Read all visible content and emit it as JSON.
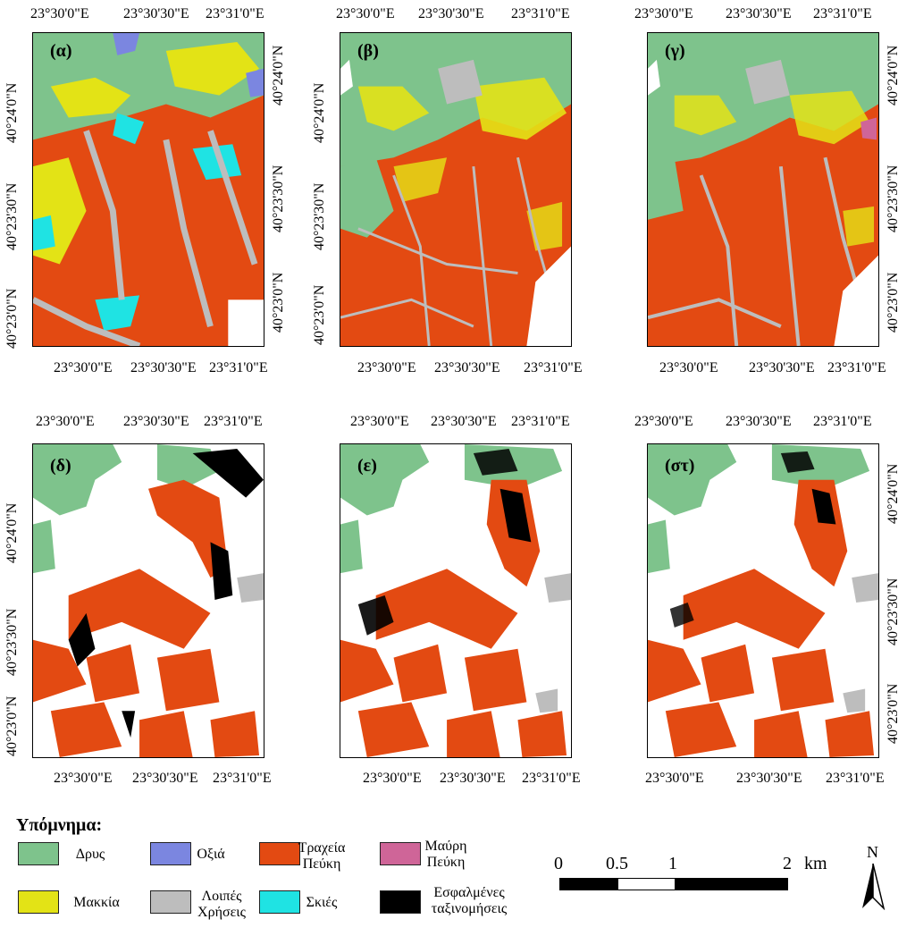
{
  "panels": [
    {
      "label": "(α)"
    },
    {
      "label": "(β)"
    },
    {
      "label": "(γ)"
    },
    {
      "label": "(δ)"
    },
    {
      "label": "(ε)"
    },
    {
      "label": "(στ)"
    }
  ],
  "axes": {
    "lon_labels": [
      "23°30'0\"E",
      "23°30'30\"E",
      "23°31'0\"E"
    ],
    "lat_labels": [
      "40°24'0\"N",
      "40°23'30\"N",
      "40°23'0\"N"
    ]
  },
  "legend": {
    "title": "Υπόμνημα:",
    "items": [
      {
        "label": "Δρυς",
        "color": "#7ec38c"
      },
      {
        "label": "Οξιά",
        "color": "#7b86e0"
      },
      {
        "label": "Τραχεία Πεύκη",
        "color": "#e34a12"
      },
      {
        "label": "Μαύρη Πεύκη",
        "color": "#cf6598"
      },
      {
        "label": "Μακκία",
        "color": "#e3e316"
      },
      {
        "label": "Λοιπές Χρήσεις",
        "color": "#bdbdbd"
      },
      {
        "label": "Σκιές",
        "color": "#1fe3e3"
      },
      {
        "label": "Εσφαλμένες ταξινομήσεις",
        "color": "#000000"
      }
    ]
  },
  "scalebar": {
    "ticks": [
      "0",
      "0.5",
      "1",
      "2"
    ],
    "unit": "km"
  },
  "north_arrow": {
    "label": "N",
    "icon": "north-arrow-icon"
  }
}
